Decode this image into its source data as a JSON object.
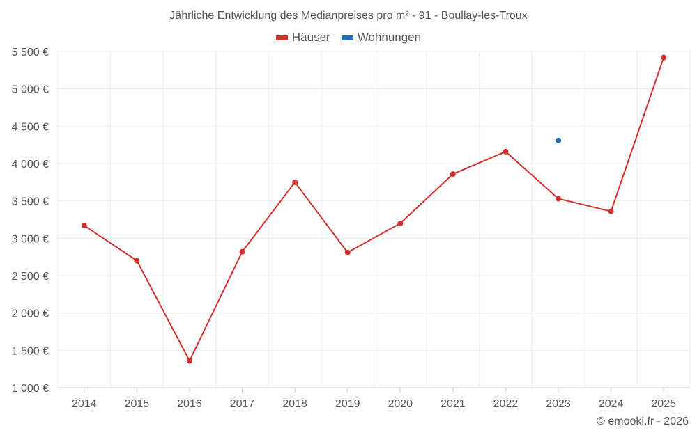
{
  "chart_data": {
    "type": "line",
    "title": "Jährliche Entwicklung des Medianpreises pro m² - 91 - Boullay-les-Troux",
    "categories": [
      "2014",
      "2015",
      "2016",
      "2017",
      "2018",
      "2019",
      "2020",
      "2021",
      "2022",
      "2023",
      "2024",
      "2025"
    ],
    "series": [
      {
        "name": "Häuser",
        "color": "#d32f2f",
        "values": [
          3170,
          2700,
          1360,
          2820,
          3750,
          2810,
          3200,
          3860,
          4160,
          3530,
          3360,
          5420
        ]
      },
      {
        "name": "Wohnungen",
        "color": "#1f6fb2",
        "values": [
          null,
          null,
          null,
          null,
          null,
          null,
          null,
          null,
          null,
          4310,
          null,
          null
        ]
      }
    ],
    "ylim": [
      1000,
      5500
    ],
    "yticks": [
      1000,
      1500,
      2000,
      2500,
      3000,
      3500,
      4000,
      4500,
      5000,
      5500
    ],
    "ytick_labels": [
      "1 000 €",
      "1 500 €",
      "2 000 €",
      "2 500 €",
      "3 000 €",
      "3 500 €",
      "4 000 €",
      "4 500 €",
      "5 000 €",
      "5 500 €"
    ],
    "grid": true,
    "legend_position": "top-center"
  },
  "credit": "© emooki.fr - 2026"
}
